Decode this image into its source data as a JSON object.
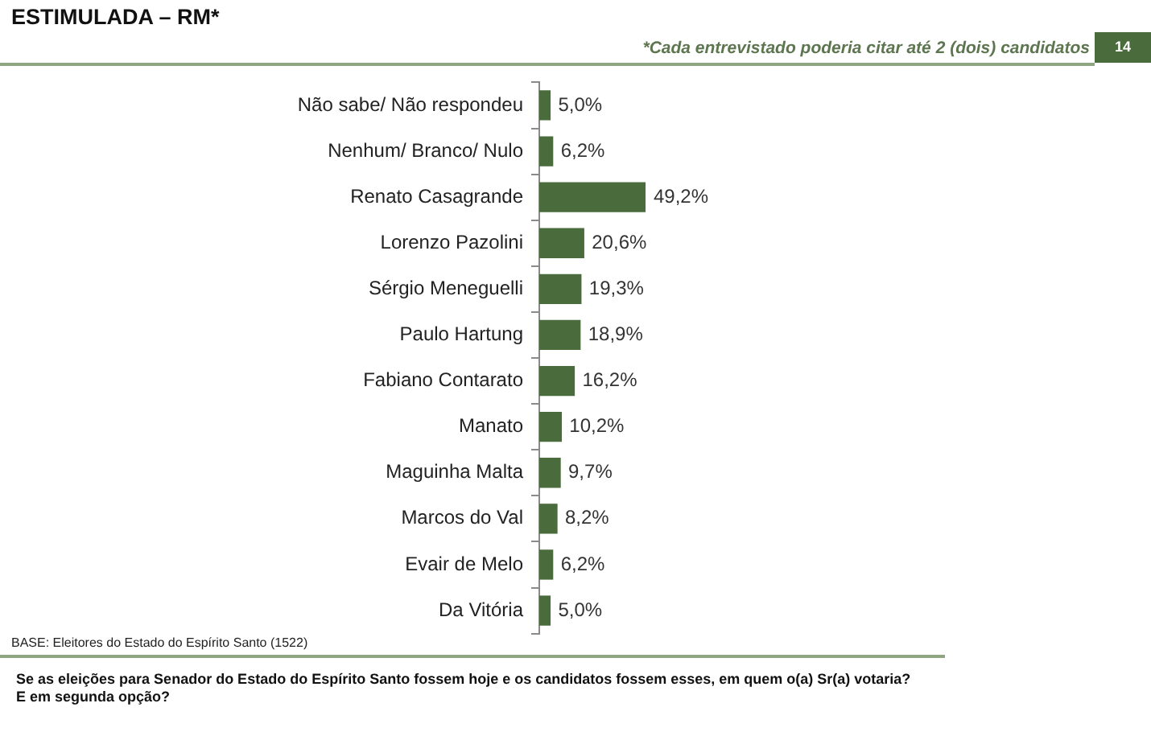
{
  "chart_data": {
    "type": "bar",
    "orientation": "horizontal",
    "title": "ESTIMULADA – RM*",
    "subtitle": "*Cada entrevistado poderia citar até 2 (dois) candidatos",
    "categories": [
      "Não sabe/ Não respondeu",
      "Nenhum/ Branco/ Nulo",
      "Renato Casagrande",
      "Lorenzo Pazolini",
      "Sérgio Meneguelli",
      "Paulo Hartung",
      "Fabiano Contarato",
      "Manato",
      "Maguinha Malta",
      "Marcos do Val",
      "Evair de Melo",
      "Da Vitória"
    ],
    "values": [
      5.0,
      6.2,
      49.2,
      20.6,
      19.3,
      18.9,
      16.2,
      10.2,
      9.7,
      8.2,
      6.2,
      5.0
    ],
    "value_labels": [
      "5,0%",
      "6,2%",
      "49,2%",
      "20,6%",
      "19,3%",
      "18,9%",
      "16,2%",
      "10,2%",
      "9,7%",
      "8,2%",
      "6,2%",
      "5,0%"
    ],
    "color": "#4a6b3c",
    "tick_labels": "y",
    "annotations": [
      "14",
      "BASE: Eleitores do Estado do Espírito Santo (1522)",
      "Se as eleições para Senador do Estado do Espírito Santo fossem hoje e os candidatos fossem esses, em quem o(a) Sr(a) votaria?\nE em segunda opção?"
    ]
  }
}
